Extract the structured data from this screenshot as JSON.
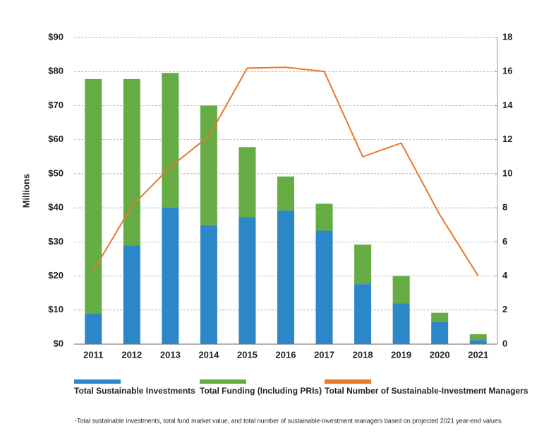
{
  "chart_data": {
    "type": "bar",
    "stacked": true,
    "y_axis_label": "Millions",
    "categories": [
      "2011",
      "2012",
      "2013",
      "2014",
      "2015",
      "2016",
      "2017",
      "2018",
      "2019",
      "2020",
      "2021"
    ],
    "series": [
      {
        "name": "Total Sustainable Investments",
        "color": "#2b87c8",
        "type": "bar",
        "values": [
          9.0,
          29.0,
          40.0,
          34.9,
          37.3,
          39.2,
          33.3,
          17.6,
          12.0,
          6.5,
          1.2
        ]
      },
      {
        "name": "Total Funding (Including PRIs)",
        "color": "#66ac45",
        "type": "bar",
        "values": [
          68.8,
          48.8,
          39.6,
          35.1,
          20.5,
          10.0,
          7.9,
          11.6,
          8.0,
          2.7,
          1.7
        ]
      },
      {
        "name": "Total Number of Sustainable-Investment Managers",
        "color": "#e8792b",
        "type": "line",
        "axis": "y2",
        "values": [
          4.3,
          8.1,
          10.4,
          12.2,
          16.2,
          16.25,
          16.0,
          11.0,
          11.8,
          7.6,
          4.0
        ]
      }
    ],
    "ylim": [
      0,
      90
    ],
    "yticks": [
      {
        "value": 0,
        "label": "$0"
      },
      {
        "value": 10,
        "label": "$10"
      },
      {
        "value": 20,
        "label": "$20"
      },
      {
        "value": 30,
        "label": "$30"
      },
      {
        "value": 40,
        "label": "$40"
      },
      {
        "value": 50,
        "label": "$50"
      },
      {
        "value": 60,
        "label": "$60"
      },
      {
        "value": 70,
        "label": "$70"
      },
      {
        "value": 80,
        "label": "$80"
      },
      {
        "value": 90,
        "label": "$90"
      }
    ],
    "y2lim": [
      0,
      18
    ],
    "y2ticks": [
      0,
      2,
      4,
      6,
      8,
      10,
      12,
      14,
      16,
      18
    ],
    "grid": true,
    "footnote": "-Total sustainable investments, total fund market value, and total number of sustainable-investment managers based on projected 2021 year-end values."
  }
}
